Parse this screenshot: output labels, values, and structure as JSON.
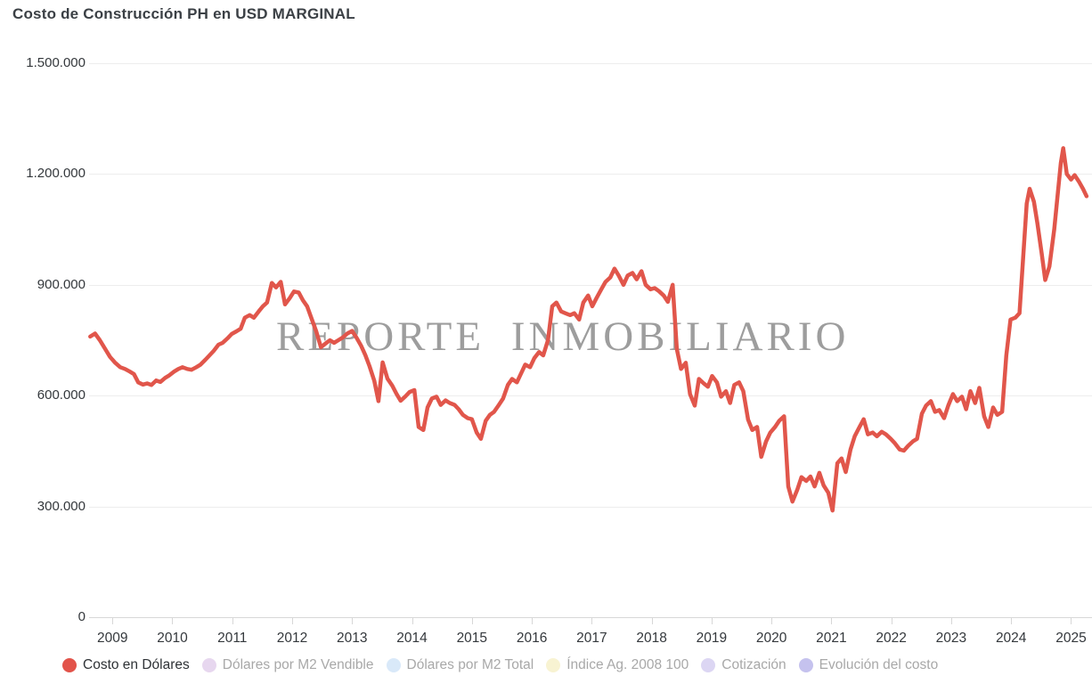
{
  "header": {
    "title": "Costo de Construcción PH en USD MARGINAL"
  },
  "watermark": {
    "text": "REPORTE INMOBILIARIO"
  },
  "colors": {
    "series_line": "#e1564b",
    "grid": "#ededed",
    "axis": "#d7d7d7",
    "title_text": "#3b4045",
    "axis_text": "#34383c",
    "legend_inactive_text": "#a8a8a8",
    "watermark_text": "#8d8d8d"
  },
  "legend": {
    "items": [
      {
        "id": "costo-en-dolares",
        "label": "Costo en Dólares",
        "color": "#e2534a",
        "active": true
      },
      {
        "id": "dolares-por-m2-vendible",
        "label": "Dólares por M2 Vendible",
        "color": "#e7d7ef",
        "active": false
      },
      {
        "id": "dolares-por-m2-total",
        "label": "Dólares por M2 Total",
        "color": "#d9e9f9",
        "active": false
      },
      {
        "id": "indice-ag-2008-100",
        "label": "Índice Ag. 2008 100",
        "color": "#f8f3d2",
        "active": false
      },
      {
        "id": "cotizacion",
        "label": "Cotización",
        "color": "#dcd6f3",
        "active": false
      },
      {
        "id": "evolucion-del-costo",
        "label": "Evolución del costo",
        "color": "#c5c2ee",
        "active": false
      }
    ]
  },
  "chart_data": {
    "type": "line",
    "title": "Costo de Construcción PH en USD MARGINAL",
    "xlabel": "",
    "ylabel": "",
    "grid": true,
    "legend_position": "bottom",
    "x_axis": {
      "range": [
        2008.61,
        2025.35
      ],
      "ticks": [
        2009,
        2010,
        2011,
        2012,
        2013,
        2014,
        2015,
        2016,
        2017,
        2018,
        2019,
        2020,
        2021,
        2022,
        2023,
        2024,
        2025
      ]
    },
    "y_axis": {
      "range": [
        0,
        1500000
      ],
      "ticks": [
        {
          "value": 1500000,
          "label": "1.500.000"
        },
        {
          "value": 1200000,
          "label": "1.200.000"
        },
        {
          "value": 900000,
          "label": "900.000"
        },
        {
          "value": 600000,
          "label": "600.000"
        },
        {
          "value": 300000,
          "label": "300.000"
        },
        {
          "value": 0,
          "label": "0"
        }
      ]
    },
    "series": [
      {
        "name": "Costo en Dólares",
        "color": "#e1564b",
        "unit": "USD",
        "points": [
          [
            2008.63,
            760000
          ],
          [
            2008.71,
            768000
          ],
          [
            2008.79,
            750000
          ],
          [
            2008.88,
            726000
          ],
          [
            2008.96,
            705000
          ],
          [
            2009.04,
            690000
          ],
          [
            2009.13,
            677000
          ],
          [
            2009.21,
            672000
          ],
          [
            2009.29,
            665000
          ],
          [
            2009.36,
            658000
          ],
          [
            2009.43,
            636000
          ],
          [
            2009.51,
            630000
          ],
          [
            2009.58,
            633000
          ],
          [
            2009.65,
            629000
          ],
          [
            2009.73,
            641000
          ],
          [
            2009.8,
            637000
          ],
          [
            2009.88,
            648000
          ],
          [
            2009.95,
            655000
          ],
          [
            2010.03,
            665000
          ],
          [
            2010.1,
            672000
          ],
          [
            2010.17,
            677000
          ],
          [
            2010.25,
            672000
          ],
          [
            2010.32,
            670000
          ],
          [
            2010.4,
            677000
          ],
          [
            2010.47,
            684000
          ],
          [
            2010.55,
            697000
          ],
          [
            2010.62,
            709000
          ],
          [
            2010.69,
            721000
          ],
          [
            2010.77,
            738000
          ],
          [
            2010.84,
            743000
          ],
          [
            2010.92,
            755000
          ],
          [
            2010.99,
            767000
          ],
          [
            2011.07,
            774000
          ],
          [
            2011.14,
            781000
          ],
          [
            2011.21,
            811000
          ],
          [
            2011.29,
            818000
          ],
          [
            2011.36,
            811000
          ],
          [
            2011.44,
            828000
          ],
          [
            2011.51,
            842000
          ],
          [
            2011.58,
            852000
          ],
          [
            2011.66,
            905000
          ],
          [
            2011.73,
            893000
          ],
          [
            2011.81,
            908000
          ],
          [
            2011.88,
            847000
          ],
          [
            2011.96,
            864000
          ],
          [
            2012.03,
            882000
          ],
          [
            2012.11,
            879000
          ],
          [
            2012.18,
            858000
          ],
          [
            2012.25,
            842000
          ],
          [
            2012.33,
            806000
          ],
          [
            2012.4,
            775000
          ],
          [
            2012.48,
            731000
          ],
          [
            2012.55,
            740000
          ],
          [
            2012.63,
            750000
          ],
          [
            2012.7,
            743000
          ],
          [
            2012.77,
            750000
          ],
          [
            2012.85,
            758000
          ],
          [
            2012.92,
            768000
          ],
          [
            2013.0,
            775000
          ],
          [
            2013.07,
            758000
          ],
          [
            2013.15,
            735000
          ],
          [
            2013.22,
            710000
          ],
          [
            2013.29,
            680000
          ],
          [
            2013.37,
            640000
          ],
          [
            2013.44,
            585000
          ],
          [
            2013.51,
            690000
          ],
          [
            2013.59,
            646000
          ],
          [
            2013.67,
            627000
          ],
          [
            2013.74,
            605000
          ],
          [
            2013.81,
            586000
          ],
          [
            2013.89,
            598000
          ],
          [
            2013.96,
            610000
          ],
          [
            2014.04,
            615000
          ],
          [
            2014.11,
            515000
          ],
          [
            2014.19,
            507000
          ],
          [
            2014.26,
            568000
          ],
          [
            2014.33,
            592000
          ],
          [
            2014.41,
            597000
          ],
          [
            2014.48,
            575000
          ],
          [
            2014.56,
            587000
          ],
          [
            2014.63,
            580000
          ],
          [
            2014.71,
            575000
          ],
          [
            2014.78,
            563000
          ],
          [
            2014.85,
            548000
          ],
          [
            2014.93,
            539000
          ],
          [
            2015.0,
            536000
          ],
          [
            2015.08,
            500000
          ],
          [
            2015.15,
            483000
          ],
          [
            2015.23,
            532000
          ],
          [
            2015.3,
            548000
          ],
          [
            2015.37,
            556000
          ],
          [
            2015.45,
            575000
          ],
          [
            2015.52,
            592000
          ],
          [
            2015.6,
            629000
          ],
          [
            2015.67,
            645000
          ],
          [
            2015.75,
            636000
          ],
          [
            2015.82,
            660000
          ],
          [
            2015.89,
            684000
          ],
          [
            2015.97,
            677000
          ],
          [
            2016.04,
            701000
          ],
          [
            2016.12,
            718000
          ],
          [
            2016.19,
            709000
          ],
          [
            2016.27,
            750000
          ],
          [
            2016.34,
            842000
          ],
          [
            2016.41,
            852000
          ],
          [
            2016.49,
            828000
          ],
          [
            2016.56,
            823000
          ],
          [
            2016.64,
            818000
          ],
          [
            2016.71,
            823000
          ],
          [
            2016.79,
            806000
          ],
          [
            2016.86,
            852000
          ],
          [
            2016.94,
            871000
          ],
          [
            2017.01,
            842000
          ],
          [
            2017.08,
            864000
          ],
          [
            2017.16,
            888000
          ],
          [
            2017.23,
            908000
          ],
          [
            2017.31,
            920000
          ],
          [
            2017.38,
            944000
          ],
          [
            2017.45,
            925000
          ],
          [
            2017.53,
            900000
          ],
          [
            2017.6,
            925000
          ],
          [
            2017.68,
            932000
          ],
          [
            2017.75,
            915000
          ],
          [
            2017.83,
            937000
          ],
          [
            2017.9,
            900000
          ],
          [
            2017.98,
            888000
          ],
          [
            2018.05,
            891000
          ],
          [
            2018.12,
            883000
          ],
          [
            2018.2,
            871000
          ],
          [
            2018.27,
            854000
          ],
          [
            2018.35,
            900000
          ],
          [
            2018.42,
            726000
          ],
          [
            2018.49,
            672000
          ],
          [
            2018.57,
            689000
          ],
          [
            2018.64,
            604000
          ],
          [
            2018.72,
            573000
          ],
          [
            2018.79,
            645000
          ],
          [
            2018.87,
            633000
          ],
          [
            2018.94,
            624000
          ],
          [
            2019.01,
            653000
          ],
          [
            2019.09,
            636000
          ],
          [
            2019.16,
            597000
          ],
          [
            2019.24,
            612000
          ],
          [
            2019.31,
            580000
          ],
          [
            2019.38,
            629000
          ],
          [
            2019.46,
            636000
          ],
          [
            2019.53,
            612000
          ],
          [
            2019.61,
            535000
          ],
          [
            2019.68,
            507000
          ],
          [
            2019.76,
            515000
          ],
          [
            2019.83,
            434000
          ],
          [
            2019.91,
            476000
          ],
          [
            2019.98,
            500000
          ],
          [
            2020.06,
            515000
          ],
          [
            2020.13,
            532000
          ],
          [
            2020.21,
            544000
          ],
          [
            2020.28,
            354000
          ],
          [
            2020.35,
            313000
          ],
          [
            2020.43,
            345000
          ],
          [
            2020.5,
            379000
          ],
          [
            2020.58,
            369000
          ],
          [
            2020.65,
            381000
          ],
          [
            2020.72,
            354000
          ],
          [
            2020.8,
            391000
          ],
          [
            2020.87,
            357000
          ],
          [
            2020.95,
            337000
          ],
          [
            2021.02,
            289000
          ],
          [
            2021.1,
            417000
          ],
          [
            2021.17,
            430000
          ],
          [
            2021.24,
            393000
          ],
          [
            2021.32,
            454000
          ],
          [
            2021.39,
            490000
          ],
          [
            2021.47,
            515000
          ],
          [
            2021.54,
            536000
          ],
          [
            2021.61,
            495000
          ],
          [
            2021.69,
            500000
          ],
          [
            2021.76,
            490000
          ],
          [
            2021.84,
            502000
          ],
          [
            2021.91,
            495000
          ],
          [
            2021.99,
            483000
          ],
          [
            2022.06,
            471000
          ],
          [
            2022.14,
            454000
          ],
          [
            2022.21,
            451000
          ],
          [
            2022.28,
            464000
          ],
          [
            2022.36,
            476000
          ],
          [
            2022.43,
            483000
          ],
          [
            2022.51,
            551000
          ],
          [
            2022.58,
            573000
          ],
          [
            2022.66,
            585000
          ],
          [
            2022.73,
            556000
          ],
          [
            2022.8,
            561000
          ],
          [
            2022.88,
            539000
          ],
          [
            2022.95,
            573000
          ],
          [
            2023.03,
            604000
          ],
          [
            2023.1,
            585000
          ],
          [
            2023.18,
            597000
          ],
          [
            2023.25,
            563000
          ],
          [
            2023.32,
            612000
          ],
          [
            2023.4,
            580000
          ],
          [
            2023.47,
            621000
          ],
          [
            2023.55,
            544000
          ],
          [
            2023.62,
            515000
          ],
          [
            2023.7,
            568000
          ],
          [
            2023.77,
            548000
          ],
          [
            2023.85,
            556000
          ],
          [
            2023.92,
            709000
          ],
          [
            2023.99,
            806000
          ],
          [
            2024.07,
            811000
          ],
          [
            2024.14,
            823000
          ],
          [
            2024.2,
            970000
          ],
          [
            2024.26,
            1120000
          ],
          [
            2024.31,
            1160000
          ],
          [
            2024.38,
            1125000
          ],
          [
            2024.44,
            1065000
          ],
          [
            2024.51,
            985000
          ],
          [
            2024.57,
            913000
          ],
          [
            2024.64,
            950000
          ],
          [
            2024.72,
            1050000
          ],
          [
            2024.78,
            1150000
          ],
          [
            2024.83,
            1230000
          ],
          [
            2024.87,
            1270000
          ],
          [
            2024.93,
            1200000
          ],
          [
            2025.0,
            1185000
          ],
          [
            2025.06,
            1197000
          ],
          [
            2025.13,
            1180000
          ],
          [
            2025.2,
            1160000
          ],
          [
            2025.26,
            1140000
          ]
        ]
      }
    ]
  }
}
